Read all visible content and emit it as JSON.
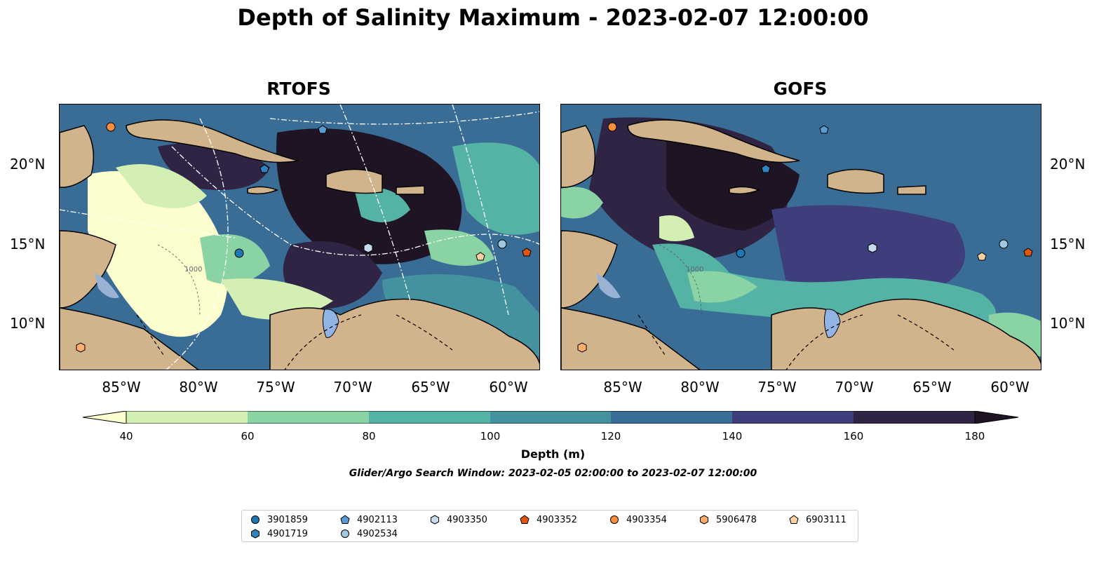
{
  "title": "Depth of Salinity Maximum - 2023-02-07 12:00:00",
  "panels": [
    {
      "title": "RTOFS"
    },
    {
      "title": "GOFS"
    }
  ],
  "lat_labels": [
    "20°N",
    "15°N",
    "10°N"
  ],
  "lon_labels": [
    "85°W",
    "80°W",
    "75°W",
    "70°W",
    "65°W",
    "60°W"
  ],
  "contour_labels": [
    "1000",
    "1000"
  ],
  "colorbar": {
    "ticks": [
      "40",
      "60",
      "80",
      "100",
      "120",
      "140",
      "160",
      "180"
    ],
    "label": "Depth (m)",
    "colors": [
      "#fdfece",
      "#d4efb4",
      "#8ad3a4",
      "#55b3a5",
      "#44919f",
      "#3a6d96",
      "#3e3e7d",
      "#302444",
      "#1f1424"
    ]
  },
  "search_window": "Glider/Argo Search Window: 2023-02-05 02:00:00 to 2023-02-07 12:00:00",
  "legend": [
    {
      "id": "3901859",
      "marker": "circle",
      "color": "#1f77b4"
    },
    {
      "id": "4902113",
      "marker": "pentagon",
      "color": "#5a9bd4"
    },
    {
      "id": "4903350",
      "marker": "hexagon",
      "color": "#c6dbef"
    },
    {
      "id": "4903352",
      "marker": "pentagon",
      "color": "#e6550d"
    },
    {
      "id": "4903354",
      "marker": "circle",
      "color": "#fd8d3c"
    },
    {
      "id": "5906478",
      "marker": "hexagon",
      "color": "#fdae6b"
    },
    {
      "id": "6903111",
      "marker": "pentagon",
      "color": "#fdd0a2"
    },
    {
      "id": "4901719",
      "marker": "hexagon",
      "color": "#3182bd"
    },
    {
      "id": "4902534",
      "marker": "circle",
      "color": "#9ecae1"
    }
  ],
  "land_color": "#d2b48c"
}
